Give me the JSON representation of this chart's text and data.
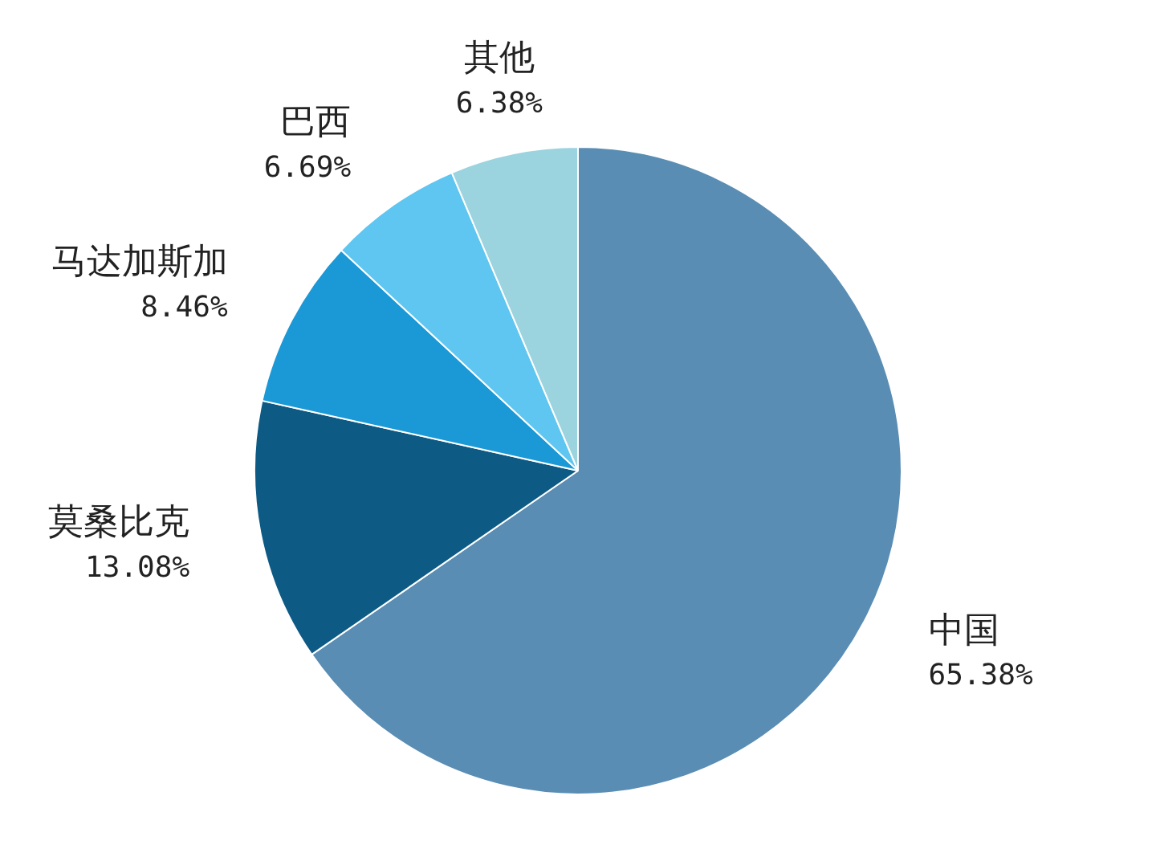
{
  "chart_data": {
    "type": "pie",
    "categories": [
      "中国",
      "莫桑比克",
      "马达加斯加",
      "巴西",
      "其他"
    ],
    "values": [
      65.38,
      13.08,
      8.46,
      6.69,
      6.38
    ],
    "value_labels": [
      "65.38%",
      "13.08%",
      "8.46%",
      "6.69%",
      "6.38%"
    ],
    "colors": [
      "#5a8db3",
      "#0d5a85",
      "#1b98d6",
      "#5ec6f0",
      "#9bd3df"
    ],
    "legend": false
  }
}
